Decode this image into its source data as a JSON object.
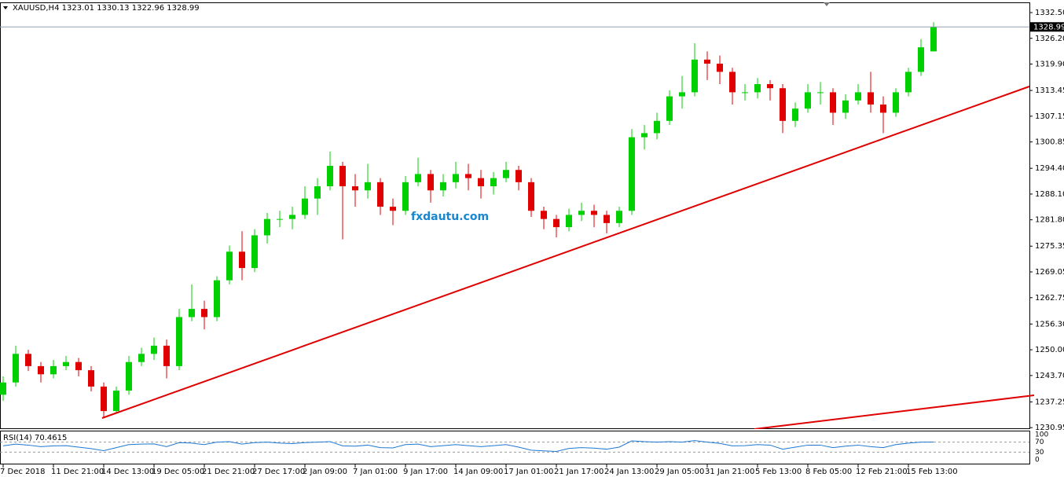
{
  "chart_data": {
    "type": "candlestick",
    "title": "XAUUSD,H4",
    "categories": [
      "7 Dec 2018",
      null,
      null,
      null,
      "11 Dec 21:00",
      null,
      null,
      null,
      "14 Dec 13:00",
      null,
      null,
      null,
      "19 Dec 05:00",
      null,
      null,
      null,
      "21 Dec 21:00",
      null,
      null,
      null,
      "27 Dec 17:00",
      null,
      null,
      null,
      "2 Jan 09:00",
      null,
      null,
      null,
      "7 Jan 01:00",
      null,
      null,
      null,
      "9 Jan 17:00",
      null,
      null,
      null,
      "14 Jan 09:00",
      null,
      null,
      null,
      "17 Jan 01:00",
      null,
      null,
      null,
      "21 Jan 17:00",
      null,
      null,
      null,
      "24 Jan 13:00",
      null,
      null,
      null,
      "29 Jan 05:00",
      null,
      null,
      null,
      "31 Jan 21:00",
      null,
      null,
      null,
      "5 Feb 13:00",
      null,
      null,
      null,
      "8 Feb 05:00",
      null,
      null,
      null,
      "12 Feb 21:00",
      null,
      null,
      null,
      "15 Feb 13:00",
      null,
      null
    ],
    "open": [
      1239,
      1242,
      1249,
      1246,
      1244,
      1246,
      1247,
      1245,
      1241,
      1235,
      1240,
      1247,
      1249,
      1251,
      1246,
      1258,
      1260,
      1258,
      1267,
      1274,
      1270,
      1278,
      1282,
      1282,
      1283,
      1287,
      1290,
      1295,
      1290,
      1289,
      1291,
      1285,
      1284,
      1291,
      1293,
      1289,
      1291,
      1293,
      1292,
      1290,
      1292,
      1294,
      1291,
      1284,
      1282,
      1280,
      1283,
      1284,
      1283,
      1281,
      1284,
      1302,
      1303,
      1306,
      1312,
      1313,
      1321,
      1320,
      1318,
      1313,
      1313,
      1315,
      1314,
      1306,
      1309,
      1313,
      1313,
      1308,
      1311,
      1313,
      1310,
      1308,
      1313,
      1318,
      1323.01
    ],
    "high": [
      1243.5,
      1251,
      1250,
      1247,
      1247.5,
      1248.5,
      1248,
      1246,
      1242,
      1241,
      1248.5,
      1250.5,
      1253,
      1252.5,
      1260,
      1266,
      1262,
      1268,
      1275.5,
      1279,
      1279.5,
      1283.5,
      1284,
      1285,
      1290,
      1292,
      1298.5,
      1296,
      1293,
      1295.5,
      1292,
      1287,
      1292.5,
      1297,
      1294,
      1293,
      1296,
      1295.5,
      1294,
      1293.5,
      1296,
      1295,
      1292,
      1285,
      1283,
      1284.5,
      1286,
      1285.5,
      1284,
      1285,
      1304,
      1305,
      1308,
      1313.5,
      1317,
      1325,
      1323,
      1322,
      1319,
      1315,
      1316.5,
      1316,
      1315,
      1310.5,
      1315,
      1315.5,
      1314,
      1312.5,
      1315,
      1318,
      1312,
      1314,
      1319,
      1326,
      1330.13
    ],
    "low": [
      1237.5,
      1241,
      1244.8,
      1242,
      1243,
      1245,
      1243.5,
      1239.8,
      1233.5,
      1234.5,
      1239,
      1246,
      1247.5,
      1243,
      1245,
      1257,
      1255,
      1257,
      1266,
      1267,
      1269,
      1276,
      1280,
      1279.5,
      1282,
      1283,
      1289,
      1277,
      1285,
      1287,
      1283,
      1280.5,
      1283,
      1290,
      1286,
      1287.5,
      1289.5,
      1289,
      1287,
      1288,
      1291,
      1289,
      1282.5,
      1279.5,
      1277.5,
      1279,
      1281.5,
      1280,
      1278.5,
      1280,
      1283,
      1299,
      1301.5,
      1305,
      1309,
      1312,
      1316,
      1315,
      1310,
      1311,
      1311.5,
      1311,
      1303,
      1304.5,
      1308,
      1310,
      1305,
      1306.5,
      1310,
      1308,
      1303,
      1307,
      1312,
      1317,
      1322.96
    ],
    "close": [
      1242,
      1249,
      1246,
      1244,
      1246,
      1247,
      1245,
      1241,
      1235,
      1240,
      1247,
      1249,
      1251,
      1246,
      1258,
      1260,
      1258,
      1267,
      1274,
      1270,
      1278,
      1282,
      1282,
      1283,
      1287,
      1290,
      1295,
      1290,
      1289,
      1291,
      1285,
      1284,
      1291,
      1293,
      1289,
      1291,
      1293,
      1292,
      1290,
      1292,
      1294,
      1291,
      1284,
      1282,
      1280,
      1283,
      1284,
      1283,
      1281,
      1284,
      1302,
      1303,
      1306,
      1312,
      1313,
      1321,
      1320,
      1318,
      1313,
      1313,
      1315,
      1314,
      1306,
      1309,
      1313,
      1313,
      1308,
      1311,
      1313,
      1310,
      1308,
      1313,
      1318,
      1324,
      1328.99
    ],
    "up_color": "#00d000",
    "down_color": "#e00000",
    "ylim": [
      1230.6,
      1335.0
    ],
    "yticks": [
      {
        "value": 1332.5,
        "label": "1332.50"
      },
      {
        "value": 1326.2,
        "label": "1326.20"
      },
      {
        "value": 1319.9,
        "label": "1319.90"
      },
      {
        "value": 1313.45,
        "label": "1313.45"
      },
      {
        "value": 1307.15,
        "label": "1307.15"
      },
      {
        "value": 1300.85,
        "label": "1300.85"
      },
      {
        "value": 1294.4,
        "label": "1294.40"
      },
      {
        "value": 1288.1,
        "label": "1288.10"
      },
      {
        "value": 1281.8,
        "label": "1281.80"
      },
      {
        "value": 1275.35,
        "label": "1275.35"
      },
      {
        "value": 1269.05,
        "label": "1269.05"
      },
      {
        "value": 1262.75,
        "label": "1262.75"
      },
      {
        "value": 1256.3,
        "label": "1256.30"
      },
      {
        "value": 1250,
        "label": "1250.00"
      },
      {
        "value": 1243.7,
        "label": "1243.70"
      },
      {
        "value": 1237.25,
        "label": "1237.25"
      },
      {
        "value": 1230.95,
        "label": "1230.95"
      }
    ],
    "watermark": "fxdautu.com",
    "rsi": {
      "name": "RSI(14)",
      "color": "#1e78d2",
      "ylim": [
        0,
        100
      ],
      "yticks": [
        100,
        70,
        30,
        0
      ],
      "values": [
        55,
        62,
        58,
        52,
        55,
        56,
        50,
        44,
        36,
        48,
        60,
        62,
        63,
        52,
        68,
        66,
        60,
        70,
        72,
        62,
        68,
        70,
        66,
        64,
        68,
        70,
        72,
        55,
        54,
        58,
        48,
        47,
        60,
        62,
        52,
        56,
        60,
        56,
        52,
        56,
        60,
        50,
        38,
        35,
        33,
        45,
        48,
        46,
        42,
        50,
        75,
        72,
        70,
        72,
        70,
        76,
        70,
        65,
        55,
        56,
        60,
        58,
        42,
        50,
        58,
        58,
        48,
        54,
        58,
        52,
        48,
        60,
        66,
        70,
        70.4615
      ]
    }
  }
}
